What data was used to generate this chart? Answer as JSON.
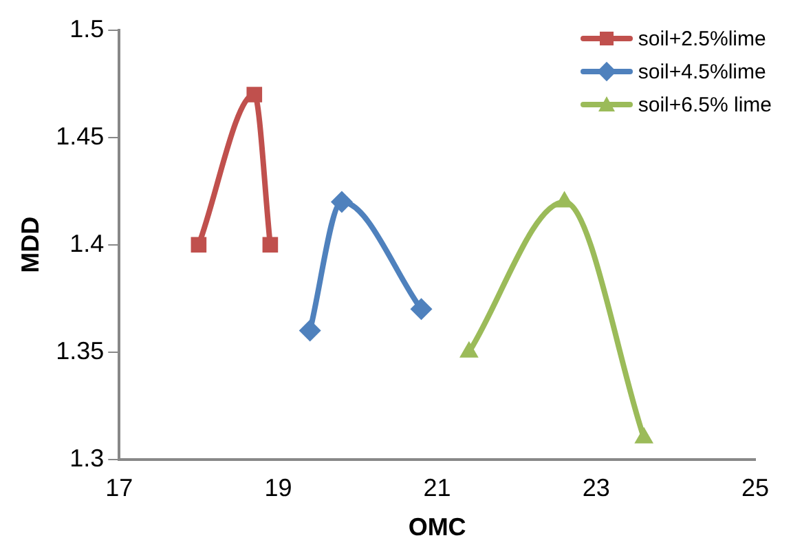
{
  "chart_data": {
    "type": "line",
    "xlabel": "OMC",
    "ylabel": "MDD",
    "xlim": [
      17,
      25
    ],
    "xticks": [
      17,
      19,
      21,
      23,
      25
    ],
    "ylim": [
      1.3,
      1.5
    ],
    "yticks": [
      1.3,
      1.35,
      1.4,
      1.45,
      1.5
    ],
    "grid": false,
    "legend": "top right",
    "series": [
      {
        "name": "soil+2.5%lime",
        "color": "#c0504d",
        "marker": "square",
        "x": [
          18.0,
          18.7,
          18.9
        ],
        "values": [
          1.4,
          1.47,
          1.4
        ]
      },
      {
        "name": "soil+4.5%lime",
        "color": "#4f81bd",
        "marker": "diamond",
        "x": [
          19.4,
          19.8,
          20.8
        ],
        "values": [
          1.36,
          1.42,
          1.37
        ]
      },
      {
        "name": "soil+6.5% lime",
        "color": "#9bbb59",
        "marker": "triangle",
        "x": [
          21.4,
          22.6,
          23.6
        ],
        "values": [
          1.35,
          1.42,
          1.31
        ]
      }
    ]
  }
}
